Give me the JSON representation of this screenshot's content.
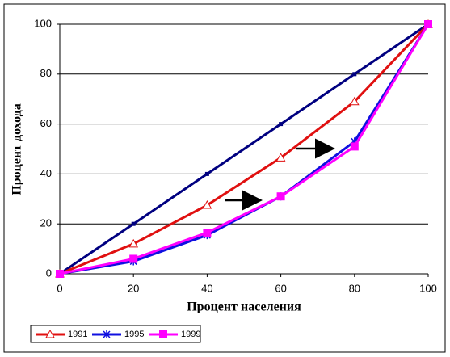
{
  "chart_data": {
    "type": "line",
    "x_label": "Процент населения",
    "y_label": "Процент дохода",
    "x": [
      0,
      20,
      40,
      60,
      80,
      100
    ],
    "series": [
      {
        "color": "#000080",
        "marker": "square-small",
        "values": [
          0,
          20,
          40,
          60,
          80,
          100
        ]
      },
      {
        "name": "1991",
        "color": "#e01010",
        "marker": "triangle",
        "values": [
          0,
          12,
          27.5,
          46.5,
          69,
          100
        ]
      },
      {
        "name": "1995",
        "color": "#1010e0",
        "marker": "asterisk",
        "values": [
          0,
          5,
          15.5,
          31,
          53,
          100
        ]
      },
      {
        "name": "1999",
        "color": "#ff00ff",
        "marker": "square",
        "values": [
          0,
          6,
          16.5,
          31,
          51,
          100
        ]
      }
    ],
    "xlim": [
      0,
      100
    ],
    "xticks": [
      0,
      20,
      40,
      60,
      80,
      100
    ],
    "ylim": [
      0,
      100
    ],
    "yticks": [
      0,
      20,
      40,
      60,
      80,
      100
    ],
    "grid": true,
    "legend": "bottom-left"
  }
}
